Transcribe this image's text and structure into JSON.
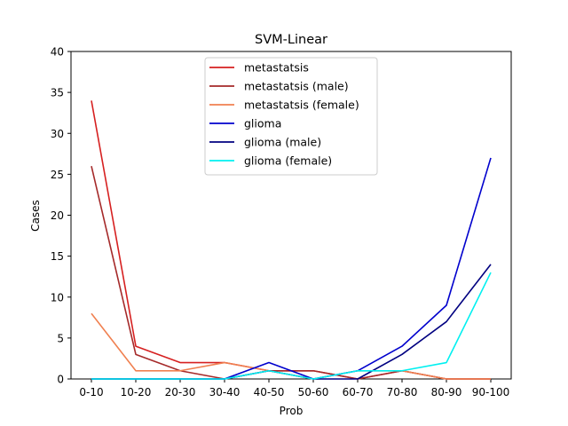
{
  "chart_data": {
    "type": "line",
    "title": "SVM-Linear",
    "xlabel": "Prob",
    "ylabel": "Cases",
    "categories": [
      "0-10",
      "10-20",
      "20-30",
      "30-40",
      "40-50",
      "50-60",
      "60-70",
      "70-80",
      "80-90",
      "90-100"
    ],
    "ylim": [
      0,
      40
    ],
    "yticks": [
      0,
      5,
      10,
      15,
      20,
      25,
      30,
      35,
      40
    ],
    "grid": false,
    "legend_position": "top-center",
    "series": [
      {
        "name": "metastatsis",
        "color": "#d62020",
        "values": [
          34,
          4,
          2,
          2,
          1,
          1,
          0,
          1,
          0,
          0
        ]
      },
      {
        "name": "metastatsis (male)",
        "color": "#a52a2a",
        "values": [
          26,
          3,
          1,
          0,
          1,
          1,
          0,
          1,
          0,
          0
        ]
      },
      {
        "name": "metastatsis (female)",
        "color": "#f08050",
        "values": [
          8,
          1,
          1,
          2,
          1,
          0,
          1,
          1,
          0,
          0
        ]
      },
      {
        "name": "glioma",
        "color": "#0000cd",
        "values": [
          0,
          0,
          0,
          0,
          2,
          0,
          1,
          4,
          9,
          27
        ]
      },
      {
        "name": "glioma (male)",
        "color": "#000080",
        "values": [
          0,
          0,
          0,
          0,
          1,
          0,
          0,
          3,
          7,
          14
        ]
      },
      {
        "name": "glioma (female)",
        "color": "#00f0f0",
        "values": [
          0,
          0,
          0,
          0,
          1,
          0,
          1,
          1,
          2,
          13
        ]
      }
    ]
  }
}
